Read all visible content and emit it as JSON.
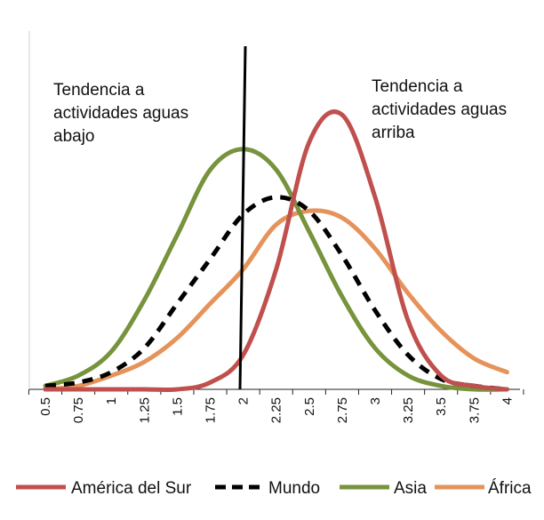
{
  "chart_data": {
    "type": "line",
    "x": [
      0.5,
      0.75,
      1,
      1.25,
      1.5,
      1.75,
      2,
      2.25,
      2.5,
      2.75,
      3,
      3.25,
      3.5,
      3.75,
      4
    ],
    "x_tick_labels": [
      "0.5",
      "0.75",
      "1",
      "1.25",
      "1.5",
      "1.75",
      "2",
      "2.25",
      "2.5",
      "2.75",
      "3",
      "3.25",
      "3.5",
      "3.75",
      "4"
    ],
    "ylim": [
      0,
      1
    ],
    "y_axis_labels_shown": false,
    "grid": false,
    "legend_position": "bottom",
    "reference_line_x": 2,
    "series": [
      {
        "name": "América del Sur",
        "color": "#c0504d",
        "style": "solid",
        "values": [
          0.0,
          0.0,
          0.0,
          0.0,
          0.0,
          0.02,
          0.1,
          0.35,
          0.72,
          0.8,
          0.56,
          0.2,
          0.04,
          0.01,
          0.0
        ]
      },
      {
        "name": "Mundo",
        "color": "#000000",
        "style": "dashed",
        "values": [
          0.01,
          0.02,
          0.05,
          0.12,
          0.25,
          0.38,
          0.51,
          0.56,
          0.52,
          0.39,
          0.23,
          0.1,
          0.03,
          0.01,
          0.0
        ]
      },
      {
        "name": "Asia",
        "color": "#77933c",
        "style": "solid",
        "values": [
          0.01,
          0.04,
          0.11,
          0.26,
          0.45,
          0.64,
          0.7,
          0.64,
          0.46,
          0.27,
          0.12,
          0.04,
          0.01,
          0.0,
          0.0
        ]
      },
      {
        "name": "África",
        "color": "#e5935a",
        "style": "solid",
        "values": [
          0.0,
          0.01,
          0.04,
          0.08,
          0.15,
          0.25,
          0.35,
          0.48,
          0.52,
          0.5,
          0.41,
          0.28,
          0.17,
          0.09,
          0.05
        ]
      }
    ],
    "annotations": [
      {
        "lines": [
          "Tendencia a",
          "actividades aguas",
          "abajo"
        ]
      },
      {
        "lines": [
          "Tendencia a",
          "actividades aguas",
          "arriba"
        ]
      }
    ]
  }
}
